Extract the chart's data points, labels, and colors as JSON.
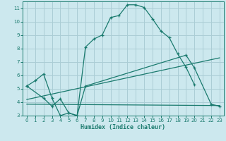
{
  "xlabel": "Humidex (Indice chaleur)",
  "xlim": [
    -0.5,
    23.5
  ],
  "ylim": [
    3,
    11.5
  ],
  "xticks": [
    0,
    1,
    2,
    3,
    4,
    5,
    6,
    7,
    8,
    9,
    10,
    11,
    12,
    13,
    14,
    15,
    16,
    17,
    18,
    19,
    20,
    21,
    22,
    23
  ],
  "yticks": [
    3,
    4,
    5,
    6,
    7,
    8,
    9,
    10,
    11
  ],
  "bg_color": "#cce8ee",
  "line_color": "#1a7a6e",
  "grid_color": "#aacdd5",
  "line1_x": [
    0,
    1,
    2,
    3,
    4,
    5,
    6,
    7,
    8,
    9,
    10,
    11,
    12,
    13,
    14,
    15,
    16,
    17,
    18,
    19,
    20
  ],
  "line1_y": [
    5.2,
    5.6,
    6.1,
    4.3,
    3.0,
    3.2,
    3.0,
    8.1,
    8.7,
    9.0,
    10.3,
    10.45,
    11.25,
    11.25,
    11.05,
    10.2,
    9.3,
    8.8,
    7.6,
    6.6,
    5.3
  ],
  "line2_x": [
    0,
    2,
    3,
    4,
    5,
    6,
    7,
    19,
    20,
    22,
    23
  ],
  "line2_y": [
    5.2,
    4.3,
    3.7,
    4.25,
    3.2,
    3.0,
    5.2,
    7.5,
    6.55,
    3.85,
    3.7
  ],
  "line3_x": [
    0,
    23
  ],
  "line3_y": [
    3.85,
    3.75
  ],
  "line4_x": [
    0,
    23
  ],
  "line4_y": [
    4.2,
    7.3
  ]
}
